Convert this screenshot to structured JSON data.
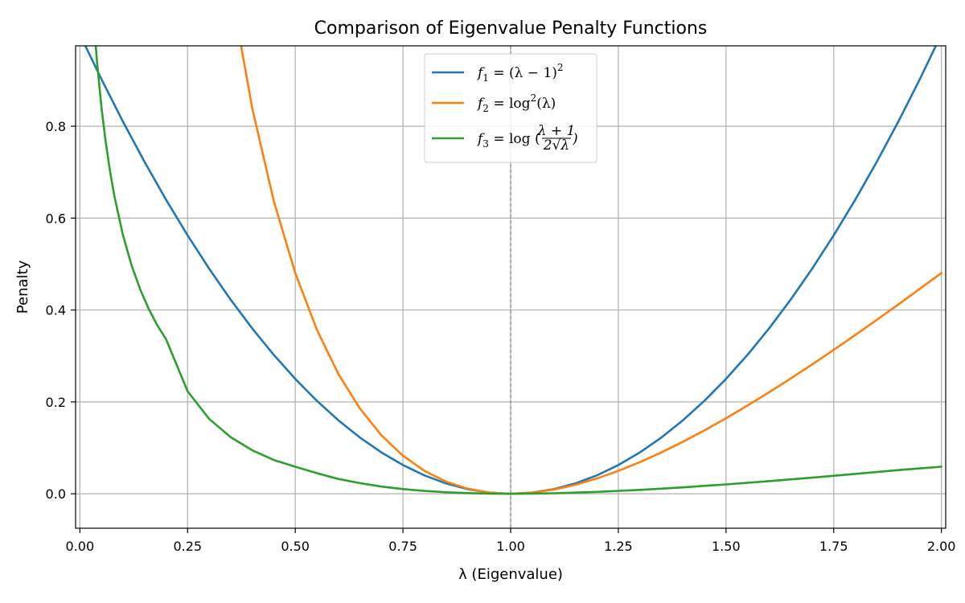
{
  "chart_data": {
    "type": "line",
    "title": "Comparison of Eigenvalue Penalty Functions",
    "xlabel": "λ (Eigenvalue)",
    "ylabel": "Penalty",
    "xlim": [
      -0.01,
      2.01
    ],
    "ylim": [
      -0.075,
      0.975
    ],
    "x_ticks": [
      0.0,
      0.25,
      0.5,
      0.75,
      1.0,
      1.25,
      1.5,
      1.75,
      2.0
    ],
    "x_tick_labels": [
      "0.00",
      "0.25",
      "0.50",
      "0.75",
      "1.00",
      "1.25",
      "1.50",
      "1.75",
      "2.00"
    ],
    "y_ticks": [
      0.0,
      0.2,
      0.4,
      0.6,
      0.8
    ],
    "y_tick_labels": [
      "0.0",
      "0.2",
      "0.4",
      "0.6",
      "0.8"
    ],
    "grid": true,
    "legend_position": "top-center",
    "vertical_reference_line": {
      "x": 1.0,
      "style": "dashed",
      "color": "#808080"
    },
    "series": [
      {
        "name": "f1 = (λ − 1)²",
        "color": "#1f77b4",
        "x": [
          0.01,
          0.05,
          0.1,
          0.15,
          0.2,
          0.25,
          0.3,
          0.35,
          0.4,
          0.45,
          0.5,
          0.55,
          0.6,
          0.65,
          0.7,
          0.75,
          0.8,
          0.85,
          0.9,
          0.95,
          1.0,
          1.05,
          1.1,
          1.15,
          1.2,
          1.25,
          1.3,
          1.35,
          1.4,
          1.45,
          1.5,
          1.55,
          1.6,
          1.65,
          1.7,
          1.75,
          1.8,
          1.85,
          1.9,
          1.95,
          2.0
        ],
        "y": [
          0.9801,
          0.9025,
          0.81,
          0.7225,
          0.64,
          0.5625,
          0.49,
          0.4225,
          0.36,
          0.3025,
          0.25,
          0.2025,
          0.16,
          0.1225,
          0.09,
          0.0625,
          0.04,
          0.0225,
          0.01,
          0.0025,
          0.0,
          0.0025,
          0.01,
          0.0225,
          0.04,
          0.0625,
          0.09,
          0.1225,
          0.16,
          0.2025,
          0.25,
          0.3025,
          0.36,
          0.4225,
          0.49,
          0.5625,
          0.64,
          0.7225,
          0.81,
          0.9025,
          1.0
        ]
      },
      {
        "name": "f2 = log²(λ)",
        "color": "#ff7f0e",
        "x": [
          0.35,
          0.4,
          0.45,
          0.5,
          0.55,
          0.6,
          0.65,
          0.7,
          0.75,
          0.8,
          0.85,
          0.9,
          0.95,
          1.0,
          1.05,
          1.1,
          1.15,
          1.2,
          1.25,
          1.3,
          1.35,
          1.4,
          1.45,
          1.5,
          1.55,
          1.6,
          1.65,
          1.7,
          1.75,
          1.8,
          1.85,
          1.9,
          1.95,
          2.0
        ],
        "y": [
          1.1021,
          0.8396,
          0.6376,
          0.4805,
          0.3574,
          0.2609,
          0.1856,
          0.1272,
          0.0828,
          0.0498,
          0.0264,
          0.0111,
          0.0026,
          0.0,
          0.0024,
          0.0091,
          0.0195,
          0.0332,
          0.0498,
          0.0688,
          0.0901,
          0.1132,
          0.1381,
          0.1644,
          0.1921,
          0.2209,
          0.2508,
          0.2816,
          0.3132,
          0.3455,
          0.3785,
          0.412,
          0.4461,
          0.4805
        ]
      },
      {
        "name": "f3 = log((λ + 1) / (2√λ))",
        "color": "#2ca02c",
        "x": [
          0.03,
          0.035,
          0.04,
          0.05,
          0.06,
          0.07,
          0.08,
          0.1,
          0.12,
          0.14,
          0.16,
          0.18,
          0.2,
          0.25,
          0.3,
          0.35,
          0.4,
          0.45,
          0.5,
          0.55,
          0.6,
          0.65,
          0.7,
          0.75,
          0.8,
          0.85,
          0.9,
          0.95,
          1.0,
          1.05,
          1.1,
          1.2,
          1.3,
          1.4,
          1.5,
          1.6,
          1.7,
          1.8,
          1.9,
          2.0
        ],
        "y": [
          1.0623,
          0.9955,
          0.9375,
          0.8416,
          0.7649,
          0.7015,
          0.6481,
          0.5628,
          0.4972,
          0.4448,
          0.4019,
          0.3662,
          0.3365,
          0.2231,
          0.1631,
          0.1232,
          0.0947,
          0.0736,
          0.0589,
          0.0448,
          0.0323,
          0.0232,
          0.0157,
          0.0102,
          0.0062,
          0.0033,
          0.0014,
          0.0003,
          0.0,
          0.0003,
          0.0011,
          0.0041,
          0.0085,
          0.014,
          0.0204,
          0.0275,
          0.0351,
          0.0432,
          0.0516,
          0.0589
        ]
      }
    ]
  },
  "legend": {
    "entries": [
      {
        "prefix": "f",
        "sub": "1",
        "rest": " = (λ − 1)",
        "sup": "2"
      },
      {
        "prefix": "f",
        "sub": "2",
        "rest": " = log",
        "sup": "2",
        "tail": "(λ)"
      },
      {
        "prefix": "f",
        "sub": "3",
        "rest": " = log ( ",
        "frac_num": "λ + 1",
        "frac_den": "2√λ",
        "tail": " )"
      }
    ]
  }
}
